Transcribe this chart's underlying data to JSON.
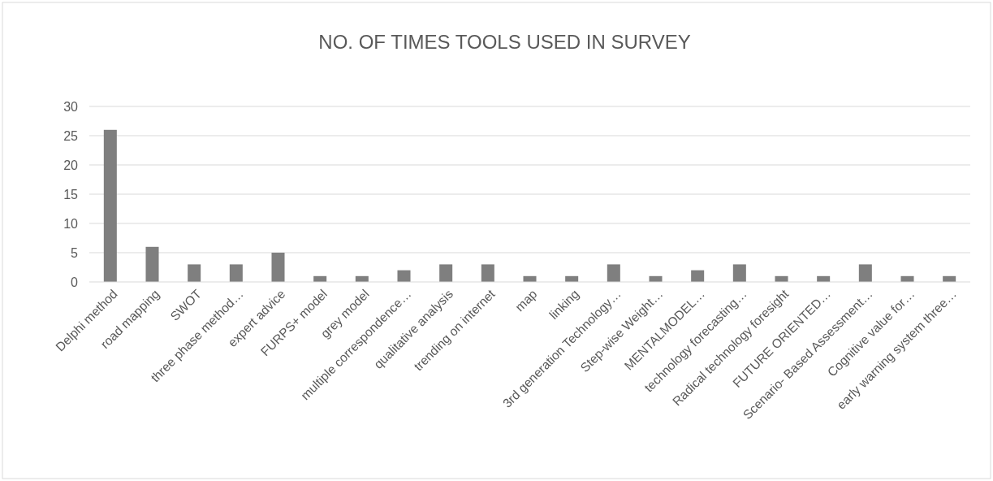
{
  "chart_data": {
    "type": "bar",
    "title": "NO. OF TIMES TOOLS USED IN SURVEY",
    "categories": [
      "Delphi method",
      "road mapping",
      "SWOT",
      "three phase method…",
      "expert advice",
      "FURPS+ model",
      "grey model",
      "multiple correspondence…",
      "qualitative analysis",
      "trending on internet",
      "map",
      "linking",
      "3rd generation Technology…",
      "Step-wise Weight…",
      "MENTALMODEL…",
      "technology forecasting…",
      "Radical technology foresight",
      "FUTURE ORIENTED…",
      "Scenario- Based Assessment…",
      "Cognitive value for…",
      "early warning system three…"
    ],
    "values": [
      26,
      6,
      3,
      3,
      5,
      1,
      1,
      2,
      3,
      3,
      1,
      1,
      3,
      1,
      2,
      3,
      1,
      1,
      3,
      1,
      1
    ],
    "color": "#7f7f7f",
    "ylim": [
      0,
      30
    ],
    "yticks": [
      0,
      5,
      10,
      15,
      20,
      25,
      30
    ],
    "grid": "y"
  }
}
